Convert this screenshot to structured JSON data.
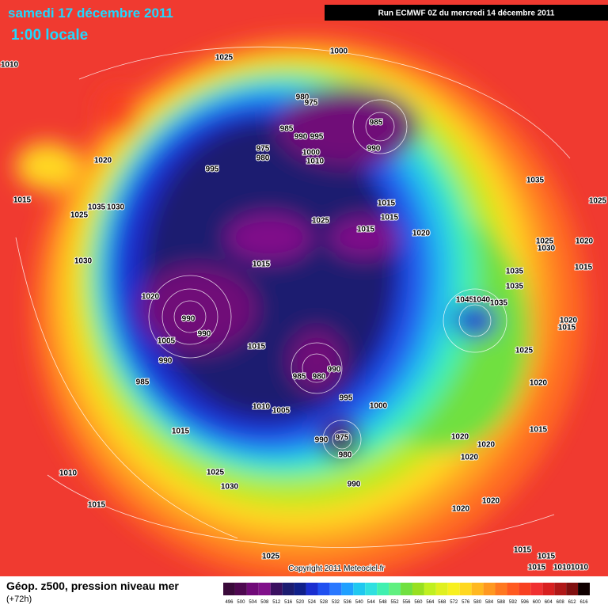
{
  "header": {
    "date": "samedi 17 décembre 2011",
    "time": "1:00 locale",
    "run": "Run ECMWF 0Z du mercredi 14 décembre 2011"
  },
  "copyright": "Copyright 2011 Meteociel.fr",
  "footer": {
    "title": "Géop. z500, pression niveau mer",
    "subtitle": "(+72h)"
  },
  "colorbar": {
    "ticks": [
      496,
      500,
      504,
      508,
      512,
      516,
      520,
      524,
      528,
      532,
      536,
      540,
      544,
      548,
      552,
      556,
      560,
      564,
      568,
      572,
      576,
      580,
      584,
      588,
      592,
      596,
      600,
      604,
      608,
      612,
      616
    ],
    "colors": [
      "#3a0a3a",
      "#4e0850",
      "#700a78",
      "#80108a",
      "#3a1060",
      "#1c1c70",
      "#10208a",
      "#1a2ed0",
      "#2050f0",
      "#2a78ff",
      "#20a0ff",
      "#20c8f0",
      "#30e0e0",
      "#40f0b0",
      "#60f080",
      "#70e040",
      "#98e020",
      "#c0f020",
      "#e0f020",
      "#f8f020",
      "#ffd820",
      "#ffb820",
      "#ff9820",
      "#ff7820",
      "#ff5a20",
      "#f84020",
      "#f03030",
      "#d82020",
      "#b01818",
      "#801010",
      "#100000"
    ]
  },
  "isobar_labels": [
    "1010",
    "1025",
    "1000",
    "980",
    "975",
    "985",
    "985",
    "990",
    "995",
    "990",
    "975",
    "980",
    "1000",
    "1010",
    "995",
    "1020",
    "1015",
    "1035",
    "1030",
    "1025",
    "1035",
    "1025",
    "1015",
    "1015",
    "1025",
    "1015",
    "1020",
    "1030",
    "1015",
    "1025",
    "1030",
    "1020",
    "1035",
    "1015",
    "1035",
    "1020",
    "1045",
    "1040",
    "1035",
    "990",
    "990",
    "1020",
    "1015",
    "1005",
    "1015",
    "1025",
    "990",
    "990",
    "985",
    "980",
    "995",
    "1000",
    "1020",
    "985",
    "1010",
    "1005",
    "1015",
    "990",
    "975",
    "980",
    "1015",
    "1020",
    "1020",
    "1020",
    "990",
    "1010",
    "1025",
    "1030",
    "1015",
    "1020",
    "1020",
    "1025",
    "1015",
    "1015",
    "1010",
    "1010",
    "1015"
  ]
}
